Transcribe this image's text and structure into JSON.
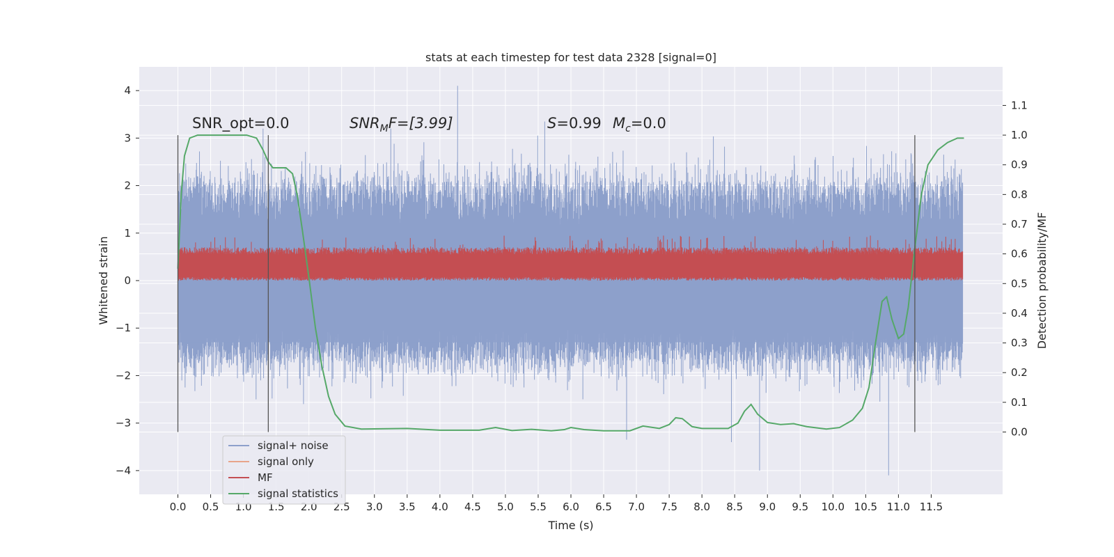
{
  "chart_data": {
    "type": "line",
    "title": "stats at each timestep for test data 2328 [signal=0]",
    "xlabel": "Time (s)",
    "ylabel": "Whitened strain",
    "y2label": "Detection probability/MF",
    "xlim": [
      -0.59,
      12.59
    ],
    "ylim": [
      -4.5,
      4.5
    ],
    "y2lim": [
      -0.21,
      1.23
    ],
    "grid": true,
    "legend_position": "lower-left",
    "x_ticks": [
      0.0,
      0.5,
      1.0,
      1.5,
      2.0,
      2.5,
      3.0,
      3.5,
      4.0,
      4.5,
      5.0,
      5.5,
      6.0,
      6.5,
      7.0,
      7.5,
      8.0,
      8.5,
      9.0,
      9.5,
      10.0,
      10.5,
      11.0,
      11.5
    ],
    "x_tick_labels": [
      "0.0",
      "0.5",
      "1.0",
      "1.5",
      "2.0",
      "2.5",
      "3.0",
      "3.5",
      "4.0",
      "4.5",
      "5.0",
      "5.5",
      "6.0",
      "6.5",
      "7.0",
      "7.5",
      "8.0",
      "8.5",
      "9.0",
      "9.5",
      "10.0",
      "10.5",
      "11.0",
      "11.5"
    ],
    "y_ticks": [
      -4,
      -3,
      -2,
      -1,
      0,
      1,
      2,
      3,
      4
    ],
    "y_tick_labels": [
      "−4",
      "−3",
      "−2",
      "−1",
      "0",
      "1",
      "2",
      "3",
      "4"
    ],
    "y2_ticks": [
      0.0,
      0.1,
      0.2,
      0.3,
      0.4,
      0.5,
      0.6,
      0.7,
      0.8,
      0.9,
      1.0,
      1.1
    ],
    "y2_tick_labels": [
      "0.0",
      "0.1",
      "0.2",
      "0.3",
      "0.4",
      "0.5",
      "0.6",
      "0.7",
      "0.8",
      "0.9",
      "1.0",
      "1.1"
    ],
    "annotations": {
      "snr_opt": "SNR_opt=0.0",
      "snr_mf_main": "SNR",
      "snr_mf_sub": "M",
      "snr_mf_rest": "F=[3.99]",
      "s_main": "S",
      "s_rest": "=0.99",
      "mc_main": "M",
      "mc_sub": "c",
      "mc_rest": "=0.0"
    },
    "vertical_lines_x": [
      0.0,
      1.38,
      11.25
    ],
    "series": [
      {
        "name": "signal+ noise",
        "color": "#8da0cb",
        "axis": "left",
        "x_range": [
          0.0,
          11.98
        ],
        "envelope_upper": 2.1,
        "envelope_lower": -1.7,
        "peak_extremes": [
          [
            4.27,
            4.1
          ],
          [
            3.25,
            3.2
          ],
          [
            5.6,
            3.35
          ],
          [
            1.3,
            3.2
          ],
          [
            8.88,
            -4.0
          ],
          [
            10.85,
            -4.1
          ],
          [
            6.85,
            -3.35
          ],
          [
            8.45,
            -3.4
          ]
        ]
      },
      {
        "name": "signal only",
        "color": "#e8a48a",
        "axis": "left",
        "values": []
      },
      {
        "name": "MF",
        "color": "#c44e52",
        "axis": "left",
        "x_range": [
          0.0,
          11.98
        ],
        "band": [
          0.0,
          0.55
        ],
        "peak_max": 0.95
      },
      {
        "name": "signal statistics",
        "color": "#55a868",
        "axis": "right",
        "points": [
          [
            0.0,
            0.55
          ],
          [
            0.05,
            0.8
          ],
          [
            0.1,
            0.93
          ],
          [
            0.18,
            0.99
          ],
          [
            0.3,
            1.0
          ],
          [
            0.6,
            1.0
          ],
          [
            0.9,
            1.0
          ],
          [
            1.05,
            1.0
          ],
          [
            1.2,
            0.99
          ],
          [
            1.3,
            0.95
          ],
          [
            1.38,
            0.91
          ],
          [
            1.45,
            0.89
          ],
          [
            1.55,
            0.89
          ],
          [
            1.65,
            0.89
          ],
          [
            1.75,
            0.87
          ],
          [
            1.82,
            0.8
          ],
          [
            1.9,
            0.68
          ],
          [
            2.0,
            0.52
          ],
          [
            2.1,
            0.35
          ],
          [
            2.2,
            0.22
          ],
          [
            2.3,
            0.12
          ],
          [
            2.4,
            0.06
          ],
          [
            2.55,
            0.02
          ],
          [
            2.8,
            0.01
          ],
          [
            3.5,
            0.012
          ],
          [
            4.0,
            0.006
          ],
          [
            4.6,
            0.006
          ],
          [
            4.85,
            0.015
          ],
          [
            5.1,
            0.005
          ],
          [
            5.4,
            0.009
          ],
          [
            5.7,
            0.004
          ],
          [
            5.9,
            0.008
          ],
          [
            6.0,
            0.015
          ],
          [
            6.2,
            0.008
          ],
          [
            6.5,
            0.004
          ],
          [
            6.9,
            0.004
          ],
          [
            7.1,
            0.02
          ],
          [
            7.35,
            0.012
          ],
          [
            7.5,
            0.025
          ],
          [
            7.6,
            0.048
          ],
          [
            7.7,
            0.045
          ],
          [
            7.85,
            0.018
          ],
          [
            8.0,
            0.012
          ],
          [
            8.4,
            0.012
          ],
          [
            8.55,
            0.03
          ],
          [
            8.65,
            0.07
          ],
          [
            8.75,
            0.093
          ],
          [
            8.85,
            0.06
          ],
          [
            9.0,
            0.032
          ],
          [
            9.2,
            0.025
          ],
          [
            9.4,
            0.028
          ],
          [
            9.6,
            0.018
          ],
          [
            9.9,
            0.01
          ],
          [
            10.1,
            0.015
          ],
          [
            10.3,
            0.04
          ],
          [
            10.45,
            0.08
          ],
          [
            10.55,
            0.15
          ],
          [
            10.65,
            0.3
          ],
          [
            10.75,
            0.44
          ],
          [
            10.82,
            0.455
          ],
          [
            10.9,
            0.38
          ],
          [
            11.0,
            0.315
          ],
          [
            11.08,
            0.33
          ],
          [
            11.15,
            0.42
          ],
          [
            11.25,
            0.62
          ],
          [
            11.35,
            0.8
          ],
          [
            11.45,
            0.9
          ],
          [
            11.6,
            0.95
          ],
          [
            11.75,
            0.975
          ],
          [
            11.9,
            0.99
          ],
          [
            12.0,
            0.99
          ]
        ]
      }
    ]
  }
}
